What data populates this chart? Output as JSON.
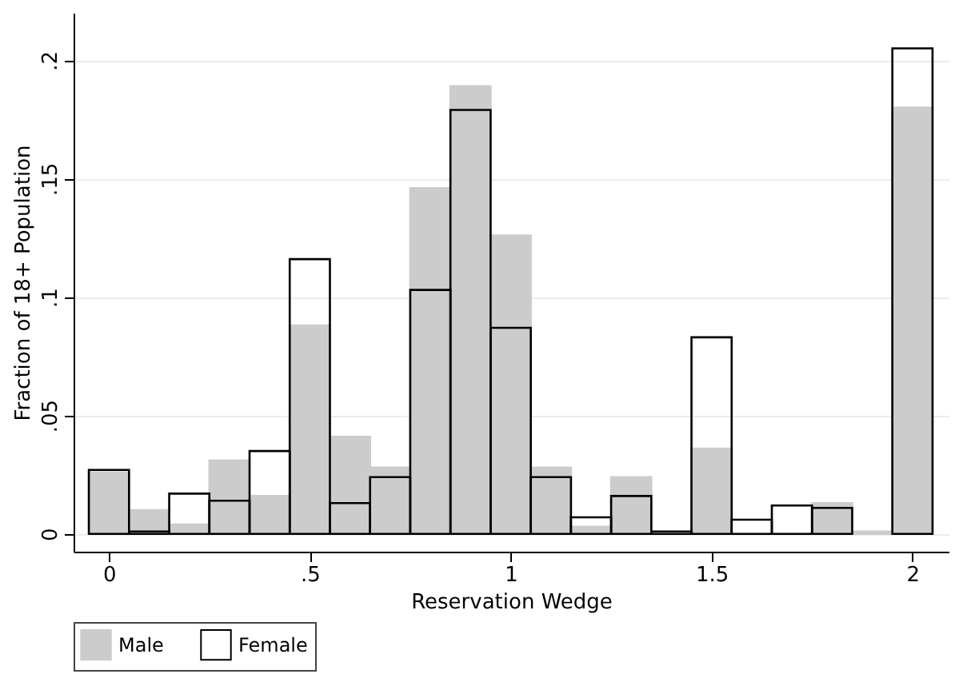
{
  "chart_data": {
    "type": "histogram",
    "xlabel": "Reservation Wedge",
    "ylabel": "Fraction of 18+ Population",
    "bins": [
      -0.05,
      0.05,
      0.15,
      0.25,
      0.35,
      0.45,
      0.55,
      0.65,
      0.75,
      0.85,
      0.95,
      1.05,
      1.15,
      1.25,
      1.35,
      1.45,
      1.55,
      1.65,
      1.75,
      1.85,
      1.95,
      2.05
    ],
    "series": [
      {
        "name": "Male",
        "color": "#cccccc",
        "values": [
          0.026,
          0.01,
          0.004,
          0.031,
          0.016,
          0.088,
          0.041,
          0.028,
          0.146,
          0.189,
          0.126,
          0.028,
          0.003,
          0.024,
          null,
          0.036,
          null,
          null,
          0.013,
          0.001,
          0.18
        ]
      },
      {
        "name": "Female",
        "color": "#000000",
        "values": [
          0.027,
          0.001,
          0.017,
          0.014,
          0.035,
          0.116,
          0.013,
          0.024,
          0.103,
          0.179,
          0.087,
          0.024,
          0.007,
          0.016,
          0.001,
          0.083,
          0.006,
          0.012,
          0.011,
          null,
          0.205
        ]
      }
    ],
    "xlim": [
      -0.088,
      2.09
    ],
    "xticks": [
      0,
      {
        "value": 0.5,
        "label": ".5"
      },
      1,
      {
        "value": 1.5,
        "label": "1.5"
      },
      2
    ],
    "ylim": [
      -0.0075,
      0.22
    ],
    "yticks": [
      0,
      {
        "value": 0.05,
        "label": ".05"
      },
      {
        "value": 0.1,
        "label": ".1"
      },
      {
        "value": 0.15,
        "label": ".15"
      },
      {
        "value": 0.2,
        "label": ".2"
      }
    ],
    "grid": "y",
    "legend": "bottom"
  }
}
